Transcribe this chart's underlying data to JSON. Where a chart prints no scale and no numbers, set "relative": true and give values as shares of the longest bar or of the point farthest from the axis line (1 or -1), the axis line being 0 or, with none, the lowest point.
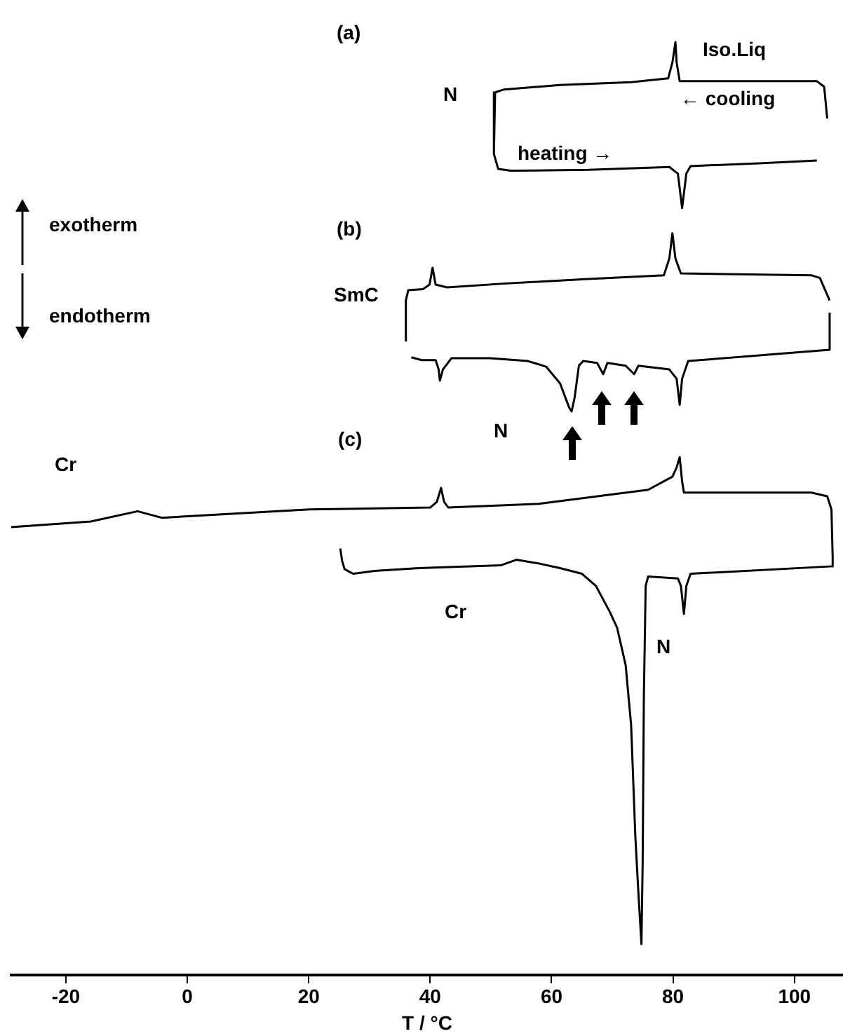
{
  "chart_data": {
    "type": "line",
    "xlabel": "T / °C",
    "relative": true,
    "xlim": [
      -29,
      108
    ],
    "xticks": [
      -20,
      0,
      20,
      40,
      60,
      80,
      100
    ],
    "grid": false,
    "legend": false,
    "marker": "none",
    "line_style": "solid",
    "tick_labels": "x",
    "annotations": [
      "(a)",
      "N",
      "Iso.Liq",
      "← cooling",
      "heating →",
      "(b)",
      "SmC",
      "exotherm",
      "endotherm",
      "N",
      "(c)",
      "Cr",
      "Cr",
      "N"
    ],
    "series": [
      {
        "color": "#000000",
        "x": [
          50.7,
          52.1,
          61.4,
          73.1,
          79.2,
          79.9,
          80.4,
          80.6,
          81.1,
          94.2,
          103.7,
          104.9,
          105.4
        ],
        "values": [
          0.946,
          0.949,
          0.954,
          0.957,
          0.961,
          0.978,
          1,
          0.978,
          0.958,
          0.958,
          0.958,
          0.952,
          0.918
        ]
      },
      {
        "color": "#000000",
        "x": [
          50.7,
          50.5,
          51.2,
          53.3,
          66.1,
          79.4,
          80.8,
          81.5,
          82.2,
          82.9,
          94.2,
          103.7
        ],
        "values": [
          0.946,
          0.88,
          0.864,
          0.862,
          0.863,
          0.866,
          0.859,
          0.822,
          0.859,
          0.867,
          0.87,
          0.873
        ]
      },
      {
        "color": "#000000",
        "x": [
          36,
          36,
          36.4,
          38.8,
          39.9,
          40.4,
          40.9,
          42.8,
          52.1,
          66.1,
          78.5,
          79.4,
          79.9,
          80.4,
          81.3,
          102.8,
          104.2,
          105.8
        ],
        "values": [
          0.679,
          0.723,
          0.734,
          0.735,
          0.74,
          0.758,
          0.74,
          0.737,
          0.741,
          0.746,
          0.75,
          0.768,
          0.795,
          0.768,
          0.752,
          0.75,
          0.747,
          0.723
        ]
      },
      {
        "color": "#000000",
        "x": [
          36.9,
          38.6,
          40.9,
          41.4,
          41.6,
          42.1,
          43.5,
          49.8,
          56.1,
          59.1,
          61.4,
          62.9,
          63.3,
          63.8,
          64.5,
          65.2,
          67.5,
          68.5,
          69.2,
          72.2,
          73.6,
          74.3,
          79.4,
          80.6,
          81.1,
          81.5,
          82.5,
          94.2,
          105.8,
          105.8
        ],
        "values": [
          0.662,
          0.659,
          0.659,
          0.649,
          0.637,
          0.649,
          0.661,
          0.661,
          0.658,
          0.652,
          0.634,
          0.608,
          0.604,
          0.619,
          0.653,
          0.658,
          0.656,
          0.644,
          0.656,
          0.653,
          0.644,
          0.653,
          0.649,
          0.639,
          0.611,
          0.639,
          0.658,
          0.664,
          0.67,
          0.71
        ]
      },
      {
        "color": "#000000",
        "x": [
          -29,
          -15.9,
          -8.2,
          -4.2,
          20.1,
          40,
          41.1,
          41.8,
          42.3,
          43,
          57.9,
          75.9,
          79.9,
          80.6,
          81.1,
          81.5,
          81.8,
          102.8,
          105.4,
          106.1,
          106.3,
          106.3
        ],
        "values": [
          0.48,
          0.486,
          0.497,
          0.49,
          0.499,
          0.501,
          0.507,
          0.522,
          0.507,
          0.501,
          0.505,
          0.52,
          0.534,
          0.544,
          0.555,
          0.529,
          0.517,
          0.517,
          0.513,
          0.499,
          0.447,
          0.438
        ]
      },
      {
        "color": "#000000",
        "x": [
          25.2,
          25.5,
          25.9,
          27.3,
          30.8,
          38.1,
          51.6,
          54.2,
          57.9,
          61.4,
          65,
          67.3,
          69.6,
          70.8,
          72.2,
          73.1,
          73.8,
          74.3,
          74.8,
          75,
          75.2,
          75.5,
          75.9,
          80.8,
          81.3,
          81.8,
          82.2,
          82.9,
          106.3
        ],
        "values": [
          0.457,
          0.444,
          0.435,
          0.43,
          0.433,
          0.436,
          0.439,
          0.445,
          0.441,
          0.436,
          0.43,
          0.417,
          0.389,
          0.372,
          0.332,
          0.268,
          0.148,
          0.088,
          0.033,
          0.118,
          0.297,
          0.417,
          0.427,
          0.425,
          0.417,
          0.387,
          0.417,
          0.43,
          0.438
        ]
      }
    ]
  }
}
